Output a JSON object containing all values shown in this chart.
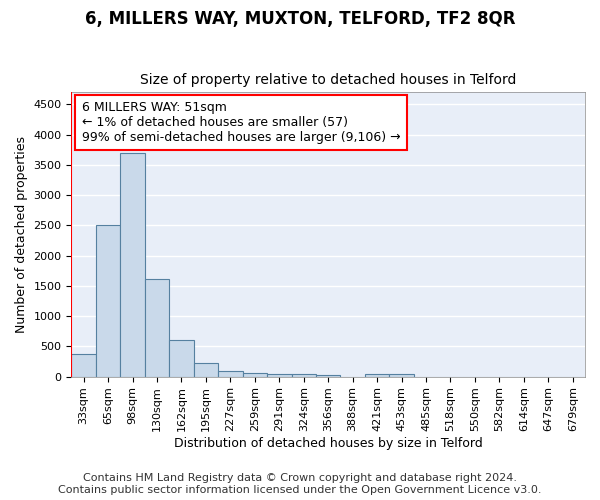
{
  "title": "6, MILLERS WAY, MUXTON, TELFORD, TF2 8QR",
  "subtitle": "Size of property relative to detached houses in Telford",
  "xlabel": "Distribution of detached houses by size in Telford",
  "ylabel": "Number of detached properties",
  "categories": [
    "33sqm",
    "65sqm",
    "98sqm",
    "130sqm",
    "162sqm",
    "195sqm",
    "227sqm",
    "259sqm",
    "291sqm",
    "324sqm",
    "356sqm",
    "388sqm",
    "421sqm",
    "453sqm",
    "485sqm",
    "518sqm",
    "550sqm",
    "582sqm",
    "614sqm",
    "647sqm",
    "679sqm"
  ],
  "values": [
    375,
    2500,
    3700,
    1620,
    600,
    220,
    100,
    60,
    50,
    35,
    30,
    0,
    40,
    35,
    0,
    0,
    0,
    0,
    0,
    0,
    0
  ],
  "bar_color": "#c9d9ea",
  "bar_edge_color": "#5580a0",
  "vline_color": "red",
  "vline_x": -0.5,
  "annotation_text": "6 MILLERS WAY: 51sqm\n← 1% of detached houses are smaller (57)\n99% of semi-detached houses are larger (9,106) →",
  "annotation_box_facecolor": "white",
  "annotation_box_edgecolor": "red",
  "ylim": [
    0,
    4700
  ],
  "yticks": [
    0,
    500,
    1000,
    1500,
    2000,
    2500,
    3000,
    3500,
    4000,
    4500
  ],
  "plot_bg_color": "#e8eef8",
  "fig_bg_color": "#ffffff",
  "grid_color": "#ffffff",
  "title_fontsize": 12,
  "subtitle_fontsize": 10,
  "axis_label_fontsize": 9,
  "tick_fontsize": 8,
  "annotation_fontsize": 9,
  "footer_fontsize": 8,
  "footer": "Contains HM Land Registry data © Crown copyright and database right 2024.\nContains public sector information licensed under the Open Government Licence v3.0."
}
